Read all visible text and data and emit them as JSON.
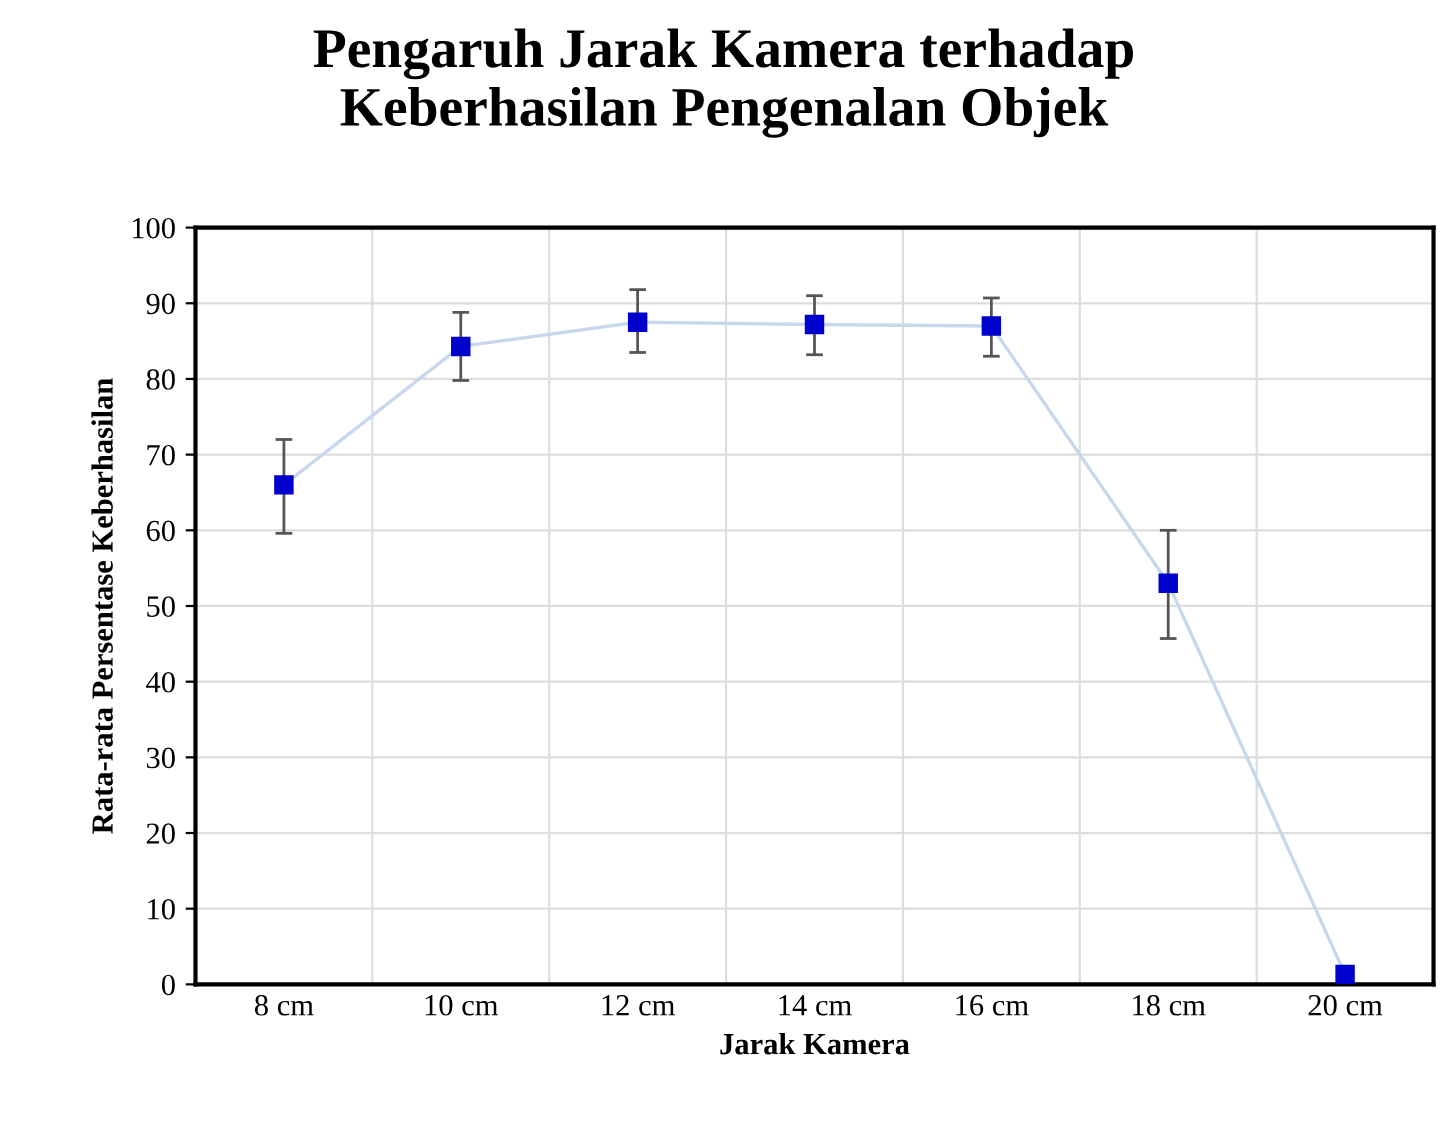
{
  "chart_data": {
    "type": "line",
    "title": "Pengaruh Jarak Kamera terhadap\nKeberhasilan Pengenalan Objek",
    "xlabel": "Jarak Kamera",
    "ylabel": "Rata-rata Persentase Keberhasilan",
    "categories": [
      "8 cm",
      "10 cm",
      "12 cm",
      "14 cm",
      "16 cm",
      "18 cm",
      "20 cm"
    ],
    "series": [
      {
        "color": "#0000cc",
        "values": [
          66,
          84.3,
          87.5,
          87.2,
          87,
          53,
          1.3
        ],
        "errors": [
          [
            59.6,
            72
          ],
          [
            79.8,
            88.8
          ],
          [
            83.5,
            91.8
          ],
          [
            83.2,
            91
          ],
          [
            83,
            90.7
          ],
          [
            45.7,
            60
          ],
          null
        ]
      }
    ],
    "ylim": [
      0,
      100
    ],
    "yticks": [
      0,
      10,
      20,
      30,
      40,
      50,
      60,
      70,
      80,
      90,
      100
    ],
    "grid": true,
    "marker": "square",
    "line_style": "solid"
  }
}
